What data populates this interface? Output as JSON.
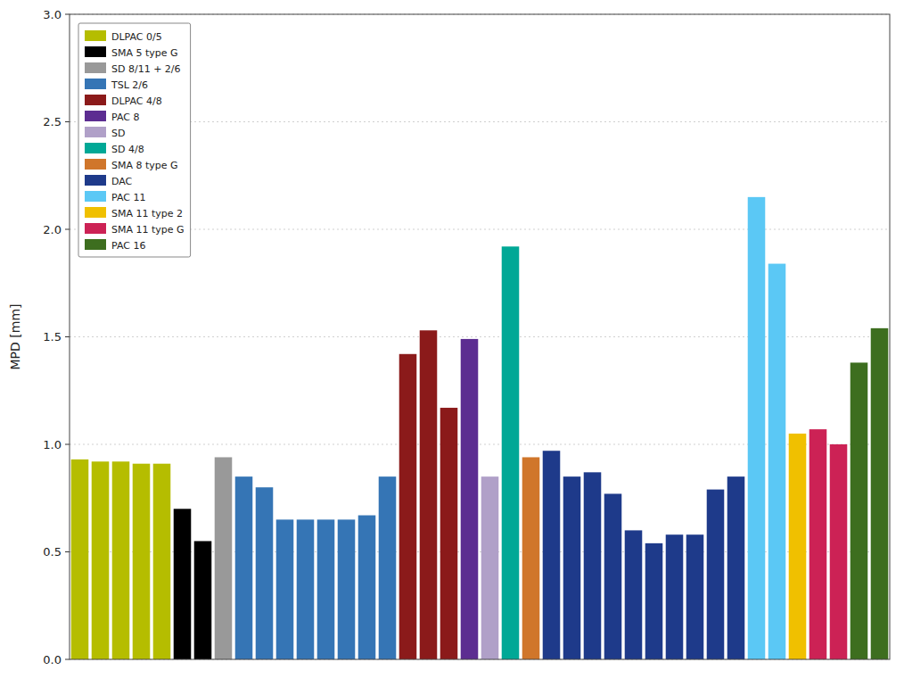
{
  "chart_data": {
    "type": "bar",
    "stacked": true,
    "ylabel": "MPD [mm]",
    "categories": [
      null,
      null,
      null,
      null,
      null,
      null,
      null,
      null,
      null,
      null,
      null,
      null,
      null,
      null,
      null,
      null,
      null,
      null,
      null,
      null,
      null,
      null,
      null,
      null,
      null,
      null,
      null,
      null,
      null,
      null,
      null,
      null,
      null,
      null,
      null,
      null,
      null,
      null,
      null,
      null
    ],
    "series": [
      {
        "name": "DLPAC 0/5",
        "color": "#b5bd00",
        "values": [
          0.93,
          0.92,
          0.92,
          0.91,
          0.91,
          null,
          null,
          null,
          null,
          null,
          null,
          null,
          null,
          null,
          null,
          null,
          null,
          null,
          null,
          null,
          null,
          null,
          null,
          null,
          null,
          null,
          null,
          null,
          null,
          null,
          null,
          null,
          null,
          null,
          null,
          null,
          null,
          null,
          null,
          null
        ]
      },
      {
        "name": "SMA 5 type G",
        "color": "#000000",
        "values": [
          null,
          null,
          null,
          null,
          null,
          0.7,
          0.55,
          null,
          null,
          null,
          null,
          null,
          null,
          null,
          null,
          null,
          null,
          null,
          null,
          null,
          null,
          null,
          null,
          null,
          null,
          null,
          null,
          null,
          null,
          null,
          null,
          null,
          null,
          null,
          null,
          null,
          null,
          null,
          null,
          null
        ]
      },
      {
        "name": "SD 8/11 + 2/6",
        "color": "#999999",
        "values": [
          null,
          null,
          null,
          null,
          null,
          null,
          null,
          0.94,
          null,
          null,
          null,
          null,
          null,
          null,
          null,
          null,
          null,
          null,
          null,
          null,
          null,
          null,
          null,
          null,
          null,
          null,
          null,
          null,
          null,
          null,
          null,
          null,
          null,
          null,
          null,
          null,
          null,
          null,
          null,
          null
        ]
      },
      {
        "name": "TSL 2/6",
        "color": "#3575b5",
        "values": [
          null,
          null,
          null,
          null,
          null,
          null,
          null,
          null,
          0.85,
          0.8,
          0.65,
          0.65,
          0.65,
          0.65,
          0.67,
          0.85,
          null,
          null,
          null,
          null,
          null,
          null,
          null,
          null,
          null,
          null,
          null,
          null,
          null,
          null,
          null,
          null,
          null,
          null,
          null,
          null,
          null,
          null,
          null,
          null
        ]
      },
      {
        "name": "DLPAC 4/8",
        "color": "#8b1a1a",
        "values": [
          null,
          null,
          null,
          null,
          null,
          null,
          null,
          null,
          null,
          null,
          null,
          null,
          null,
          null,
          null,
          null,
          1.42,
          1.53,
          1.17,
          null,
          null,
          null,
          null,
          null,
          null,
          null,
          null,
          null,
          null,
          null,
          null,
          null,
          null,
          null,
          null,
          null,
          null,
          null,
          null,
          null
        ]
      },
      {
        "name": "PAC 8",
        "color": "#5c2d91",
        "values": [
          null,
          null,
          null,
          null,
          null,
          null,
          null,
          null,
          null,
          null,
          null,
          null,
          null,
          null,
          null,
          null,
          null,
          null,
          null,
          1.49,
          null,
          null,
          null,
          null,
          null,
          null,
          null,
          null,
          null,
          null,
          null,
          null,
          null,
          null,
          null,
          null,
          null,
          null,
          null,
          null
        ]
      },
      {
        "name": "SD",
        "color": "#b0a0c8",
        "values": [
          null,
          null,
          null,
          null,
          null,
          null,
          null,
          null,
          null,
          null,
          null,
          null,
          null,
          null,
          null,
          null,
          null,
          null,
          null,
          null,
          0.85,
          null,
          null,
          null,
          null,
          null,
          null,
          null,
          null,
          null,
          null,
          null,
          null,
          null,
          null,
          null,
          null,
          null,
          null,
          null
        ]
      },
      {
        "name": "SD 4/8",
        "color": "#00a896",
        "values": [
          null,
          null,
          null,
          null,
          null,
          null,
          null,
          null,
          null,
          null,
          null,
          null,
          null,
          null,
          null,
          null,
          null,
          null,
          null,
          null,
          null,
          1.92,
          null,
          null,
          null,
          null,
          null,
          null,
          null,
          null,
          null,
          null,
          null,
          null,
          null,
          null,
          null,
          null,
          null,
          null
        ]
      },
      {
        "name": "SMA 8 type G",
        "color": "#d0762b",
        "values": [
          null,
          null,
          null,
          null,
          null,
          null,
          null,
          null,
          null,
          null,
          null,
          null,
          null,
          null,
          null,
          null,
          null,
          null,
          null,
          null,
          null,
          null,
          0.94,
          null,
          null,
          null,
          null,
          null,
          null,
          null,
          null,
          null,
          null,
          null,
          null,
          null,
          null,
          null,
          null,
          null
        ]
      },
      {
        "name": "DAC",
        "color": "#1e3a8a",
        "values": [
          null,
          null,
          null,
          null,
          null,
          null,
          null,
          null,
          null,
          null,
          null,
          null,
          null,
          null,
          null,
          null,
          null,
          null,
          null,
          null,
          null,
          null,
          null,
          0.97,
          0.85,
          0.87,
          0.77,
          0.6,
          0.54,
          0.58,
          0.58,
          0.79,
          0.85,
          null,
          null,
          null,
          null,
          null,
          null,
          null
        ]
      },
      {
        "name": "PAC 11",
        "color": "#5bc8f5",
        "values": [
          null,
          null,
          null,
          null,
          null,
          null,
          null,
          null,
          null,
          null,
          null,
          null,
          null,
          null,
          null,
          null,
          null,
          null,
          null,
          null,
          null,
          null,
          null,
          null,
          null,
          null,
          null,
          null,
          null,
          null,
          null,
          null,
          null,
          2.15,
          1.84,
          null,
          null,
          null,
          null,
          null
        ]
      },
      {
        "name": "SMA 11 type 2",
        "color": "#f0c000",
        "values": [
          null,
          null,
          null,
          null,
          null,
          null,
          null,
          null,
          null,
          null,
          null,
          null,
          null,
          null,
          null,
          null,
          null,
          null,
          null,
          null,
          null,
          null,
          null,
          null,
          null,
          null,
          null,
          null,
          null,
          null,
          null,
          null,
          null,
          null,
          null,
          1.05,
          null,
          null,
          null,
          null
        ]
      },
      {
        "name": "SMA 11 type G",
        "color": "#cc2255",
        "values": [
          null,
          null,
          null,
          null,
          null,
          null,
          null,
          null,
          null,
          null,
          null,
          null,
          null,
          null,
          null,
          null,
          null,
          null,
          null,
          null,
          null,
          null,
          null,
          null,
          null,
          null,
          null,
          null,
          null,
          null,
          null,
          null,
          null,
          null,
          null,
          null,
          1.07,
          1.0,
          null,
          null
        ]
      },
      {
        "name": "PAC 16",
        "color": "#3d6e1f",
        "values": [
          null,
          null,
          null,
          null,
          null,
          null,
          null,
          null,
          null,
          null,
          null,
          null,
          null,
          null,
          null,
          null,
          null,
          null,
          null,
          null,
          null,
          null,
          null,
          null,
          null,
          null,
          null,
          null,
          null,
          null,
          null,
          null,
          null,
          null,
          null,
          null,
          null,
          null,
          1.38,
          1.54
        ]
      }
    ],
    "ylim": [
      0,
      3.0
    ],
    "yticks": [
      {
        "value": 0,
        "label": "0.0"
      },
      0.5,
      {
        "value": 1.0,
        "label": "1.0"
      },
      1.5,
      {
        "value": 2.0,
        "label": "2.0"
      },
      2.5,
      {
        "value": 3.0,
        "label": "3.0"
      }
    ],
    "grid": true,
    "legend": "upper left",
    "tick_labels": "y"
  }
}
